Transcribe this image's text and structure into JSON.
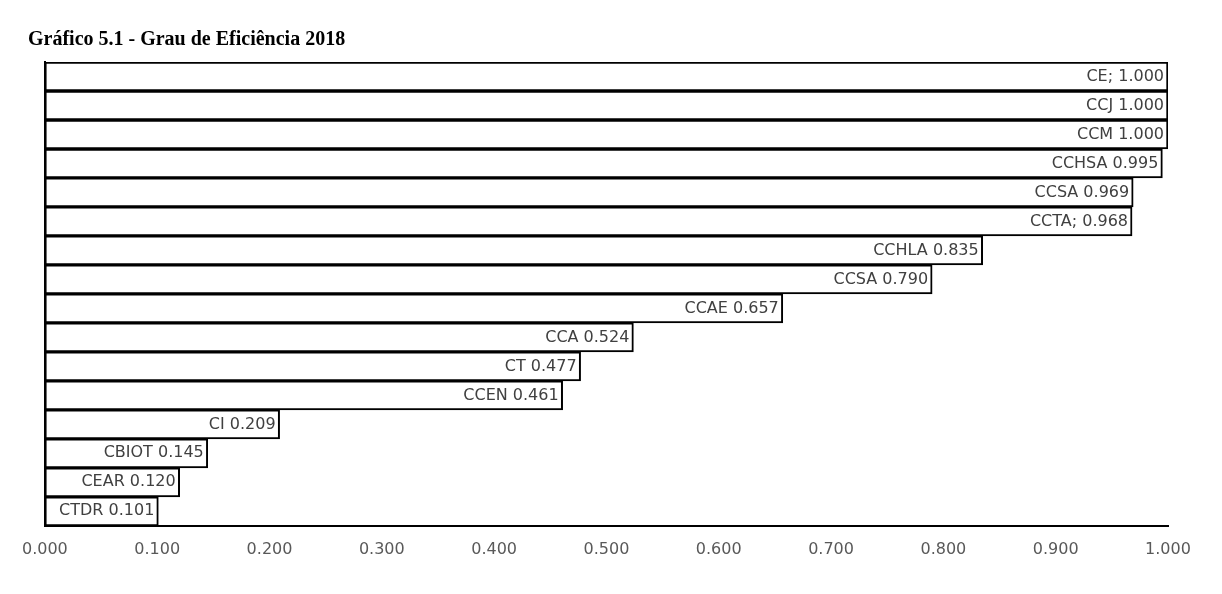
{
  "chart_data": {
    "type": "bar",
    "orientation": "horizontal",
    "title": "Gráfico 5.1 - Grau de Eficiência 2018",
    "categories": [
      null,
      null,
      null,
      null,
      null,
      null,
      null,
      null,
      null,
      null,
      null,
      null,
      null,
      null,
      null,
      null
    ],
    "values": [
      1.0,
      1.0,
      1.0,
      0.995,
      0.969,
      0.968,
      0.835,
      0.79,
      0.657,
      0.524,
      0.477,
      0.461,
      0.209,
      0.145,
      0.12,
      0.101
    ],
    "value_labels": [
      "CE; 1.000",
      "CCJ 1.000",
      "CCM 1.000",
      "CCHSA 0.995",
      "CCSA 0.969",
      "CCTA; 0.968",
      "CCHLA 0.835",
      "CCSA 0.790",
      "CCAE 0.657",
      "CCA 0.524",
      "CT 0.477",
      "CCEN 0.461",
      "CI 0.209",
      "CBIOT 0.145",
      "CEAR 0.120",
      "CTDR 0.101"
    ],
    "color": "#ffffff",
    "xlim": [
      0,
      1
    ],
    "xticks": [
      {
        "value": 0,
        "label": "0.000"
      },
      {
        "value": 0.1,
        "label": "0.100"
      },
      {
        "value": 0.2,
        "label": "0.200"
      },
      {
        "value": 0.3,
        "label": "0.300"
      },
      {
        "value": 0.4,
        "label": "0.400"
      },
      {
        "value": 0.5,
        "label": "0.500"
      },
      {
        "value": 0.6,
        "label": "0.600"
      },
      {
        "value": 0.7,
        "label": "0.700"
      },
      {
        "value": 0.8,
        "label": "0.800"
      },
      {
        "value": 0.9,
        "label": "0.900"
      },
      {
        "value": 1,
        "label": "1.000"
      }
    ],
    "grid": false,
    "legend": false,
    "tick_labels": "x"
  }
}
